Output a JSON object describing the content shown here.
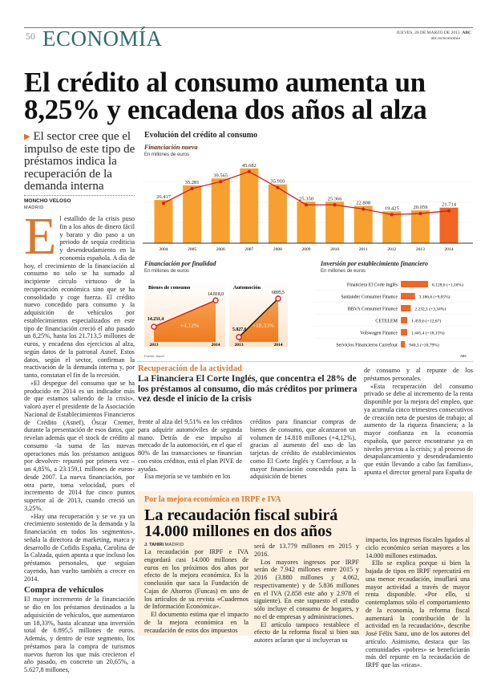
{
  "header": {
    "page_number": "50",
    "section": "ECONOMÍA",
    "date": "JUEVES, 26 DE MARZO DE 2015",
    "brand": "ABC",
    "url": "abc.es/economia"
  },
  "headline": "El crédito al consumo aumenta un 8,25% y encadena dos años al alza",
  "deck": "El sector cree que el impulso de este tipo de préstamos indica la recuperación de la demanda interna",
  "byline": {
    "author": "MONCHO VELOSO",
    "city": "MADRID"
  },
  "article": {
    "drop_cap": "E",
    "p1": "l estallido de la crisis puso fin a los años de dinero fácil y barato y dio paso a un periodo de sequía crediticia y desendeudamiento en la economía española. A día de hoy, el crecimiento de la financiación al consumo no solo se ha sumado al incipiente círculo virtuoso de la recuperación económica sino que se ha consolidado y coge fuerza. El crédito nuevo concedido para consumo y la adquisición de vehículos por establecimientos especializados en este tipo de financiación creció el año pasado un 8,25%, hasta los 21.713,5 millones de euros, y encadena dos ejercicios al alza, según datos de la patronal Asnef. Estos datos, según el sector, confirman la reactivación de la demanda interna y, por tanto, constatan el fin de la recesión.",
    "p2": "«El despegue del consumo que se ha producido en 2014 es un indicador más de que estamos saliendo de la crisis», valoró ayer el presidente de la Asociación Nacional de Establecimientos Financieros de Crédito (Asnef), Óscar Cremer, durante la presentación de esos datos, que revelan además que el stock de crédito al consumo -la suma de las nuevas operaciones más los préstamos antiguos por devolver- repuntó por primera vez –un 4,85%, a 23.159,1 millones de euros- desde 2007. La nueva financiación, por otra parte, toma velocidad, pues el incremento de 2014 fue cinco puntos superior al de 2013, cuando creció un 3,25%.",
    "p3": "«Hay una recuperación y se ve ya un crecimiento sostenido de la demanda y la financiación en todos los segmentos», señala la directora de marketing, marca y desarrollo de Cofidis España, Carolina de la Calzada, quien apunta a que incluso los préstamos personales, que seguían cayendo, han vuelto también a crecer en 2014.",
    "subhead": "Compra de vehículos",
    "p4": "El mayor incremento de la financiación se dio en los préstamos destinados a la adquisición de vehículos, que aumentaron un 18,33%, hasta alcanzar una inversión total de 6.895,5 millones de euros. Además, y dentro de este segmento, los préstamos para la compra de turismos nuevos fueron los que más crecieron el año pasado, en concreto un 20,65%, a 5.627,8 millones,",
    "c1a": "frente al alza del 9,51% en los créditos para adquirir automóviles de segunda mano. Detrás de ese impulso al mercado de la automoción, en el que el 80% de las transacciones se financian con estos créditos, está el plan PIVE de ayudas.",
    "c1b": "Esa mejoría se ve también en los",
    "c2": "créditos para financiar compras de bienes de consumo, que alcanzaron un volumen de 14.818 millones (+4,12%), gracias al aumento del uso de las tarjetas de crédito de establecimientos como El Corte Inglés y Carrefour, a la mayor financiación concedida para la adquisición de bienes",
    "c3a": "de consumo y al repunte de los préstamos personales.",
    "c3b": "«Esta recuperación del consumo privado se debe al incremento de la renta disponible por la mejora del empleo, que ya acumula cinco trimestres consecutivos de creación neta de puestos de trabajo; al aumento de la riqueza financiera; a la mayor confianza en la economía española, que parece encontrarse ya en niveles previos a la crisis; y al proceso de desapalancamiento y desendeudamiento que están llevando a cabo las familias», apunta el director general para España de"
  },
  "sidebar_story": {
    "kicker": "Recuperación de la actividad",
    "title": "La Financiera El Corte Inglés, que concentra el 28% de los préstamos al consumo, dio más créditos por primera vez desde el inicio de la crisis"
  },
  "box": {
    "kicker": "Por la mejora económica en IRPF e IVA",
    "title": "La recaudación fiscal subirá 14.000 millones en dos años",
    "author": "J. TAHIRI",
    "city": "MADRID",
    "b1": "La recaudación por IRPF e IVA engordará casi 14.000 millones de euros en los próximos dos años por efecto de la mejora económica. Es la conclusión que saca la Fundación de Cajas de Ahorros (Funcas) en uno de los artículos de su revista «Cuadernos de Información Económica».",
    "b1b": "El documento estima que el impacto de la mejora económica en la recaudación de estos dos impuestos",
    "b2a": "será de 13.779 millones en 2015 y 2016.",
    "b2b": "Los mayores ingresos por IRPF serán de 7.942 millones entre 2015 y 2016 (3.880 millones y 4.062, respectivamente) y de 5.836 millones en el IVA (2.858 este año y 2.978 el siguiente). En este supuesto el estudio sólo incluye el consumo de hogares, y no el de empresas y administraciones.",
    "b2c": "El artículo tampoco restablece el efecto de la reforma fiscal si bien sus autores aclaran que si incluyeran su",
    "b3a": "impacto, los ingresos fiscales ligados al ciclo económico serían mayores a los 14.000 millones estimados.",
    "b3b": "Ello se explica porque si bien la bajada de tipos en IRPF repercutirá en una menor recaudación, insuflará una mayor actividad a través de mayor renta disponible. «Por ello, si contemplamos sólo el comportamiento de la economía, la reforma fiscal aumentará la contribución de la actividad en la recaudación», describe José Félix Sanz, uno de los autores del artículo. Asimismo, destaca que las comunidades «pobres» se beneficiarán más del repunte en la recaudación de IRPF que las «ricas»."
  },
  "infographic": {
    "title": "Evolución del crédito al consumo",
    "source": "Fuente: Asnef",
    "credit": "ABC",
    "colors": {
      "bar": "#f7a030",
      "bar_highlight": "#f26522",
      "line": "#d0201a"
    }
  },
  "chart_data": [
    {
      "type": "bar",
      "title": "Financiación nueva",
      "subtitle": "En millones de euros",
      "categories": [
        "2004",
        "2005",
        "2006",
        "2007",
        "2008",
        "2009",
        "2010",
        "2011",
        "2012",
        "2013",
        "2014"
      ],
      "values": [
        26417,
        35281,
        39565,
        45682,
        35910,
        25350,
        25366,
        22808,
        19425,
        20059,
        21714
      ],
      "labels": [
        "26.417",
        "35.281",
        "39.565",
        "45.682",
        "35.910",
        "25.350",
        "25.366",
        "22.808",
        "19.425",
        "20.059",
        "21.714"
      ],
      "overlay": "line",
      "ylim": [
        0,
        50000
      ],
      "grid": true
    },
    {
      "type": "line",
      "title": "Financiación por finalidad",
      "subtitle": "En millones de euros",
      "panels": [
        {
          "name": "Bienes de consumo",
          "x": [
            "2013",
            "2014"
          ],
          "values": [
            14231.4,
            14818.0
          ],
          "labels": [
            "14.231,4",
            "14.818,0"
          ],
          "change": "+4,12%"
        },
        {
          "name": "Automoción",
          "x": [
            "2013",
            "2014"
          ],
          "values": [
            5827.6,
            6895.5
          ],
          "labels": [
            "5.827,6",
            "6895,5"
          ],
          "change": "+18,33%"
        }
      ]
    },
    {
      "type": "bar",
      "orientation": "horizontal",
      "title": "Inversión por establecimiento financiero",
      "subtitle": "En millones de euros",
      "categories": [
        "Financiera El Corte Inglés",
        "Santander Consumer Finance",
        "BBVA Consumer Finance",
        "CETELEM",
        "Volswagen Finance",
        "Servicios Financieros Carrefour"
      ],
      "values": [
        6128.6,
        3186.6,
        2232.1,
        1459.6,
        1445.4,
        940.3
      ],
      "labels": [
        "6.128,6 (+1,16%)",
        "3.186,6 (+9,05%)",
        "2.232,1 (+3,34%)",
        "1.459,6 (+12,67)",
        "1.445,4 (+18,15%)",
        "940,3 (+20,79%)"
      ]
    }
  ]
}
